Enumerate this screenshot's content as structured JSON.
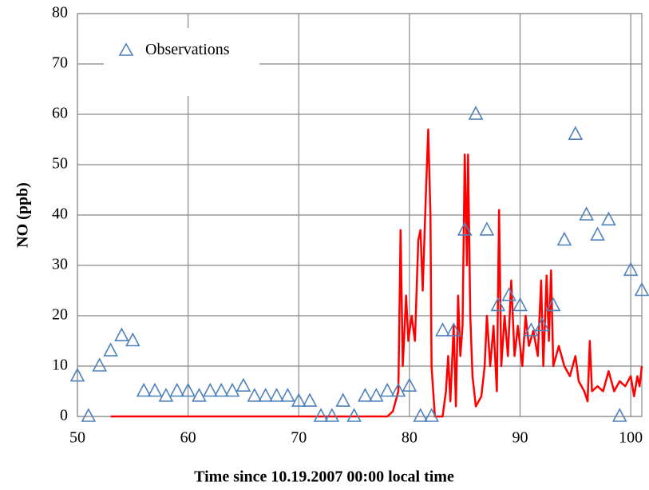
{
  "chart_data": {
    "type": "line",
    "xlabel": "Time since 10.19.2007 00:00  local time",
    "ylabel": "NO (ppb)",
    "xlim": [
      50,
      101
    ],
    "xticks": [
      50,
      60,
      70,
      80,
      90,
      100
    ],
    "ylim": [
      0,
      80
    ],
    "yticks": [
      0,
      10,
      20,
      30,
      40,
      50,
      60,
      70,
      80
    ],
    "grid": true,
    "legend": "upper left",
    "series": [
      {
        "name": "Observations",
        "color": "#4f81bd",
        "marker": "triangle",
        "x": [
          50,
          51,
          52,
          53,
          54,
          55,
          56,
          57,
          58,
          59,
          60,
          61,
          62,
          63,
          64,
          65,
          66,
          67,
          68,
          69,
          70,
          71,
          72,
          73,
          74,
          75,
          76,
          77,
          78,
          79,
          80,
          81,
          82,
          83,
          84,
          85,
          86,
          87,
          88,
          89,
          90,
          91,
          92,
          93,
          94,
          95,
          96,
          97,
          98,
          99,
          100,
          101
        ],
        "values": [
          8,
          0,
          10,
          13,
          16,
          15,
          5,
          5,
          4,
          5,
          5,
          4,
          5,
          5,
          5,
          6,
          4,
          4,
          4,
          4,
          3,
          3,
          0,
          0,
          3,
          0,
          4,
          4,
          5,
          5,
          6,
          0,
          0,
          17,
          17,
          37,
          60,
          37,
          22,
          24,
          22,
          17,
          18,
          22,
          35,
          56,
          40,
          36,
          39,
          0,
          29,
          25
        ]
      },
      {
        "color": "#ff0000",
        "x": [
          53,
          78,
          78.5,
          79,
          79.2,
          79.4,
          79.7,
          79.9,
          80.2,
          80.5,
          80.8,
          81,
          81.2,
          81.5,
          81.7,
          81.9,
          82,
          82.3,
          83,
          83.3,
          83.5,
          83.7,
          84,
          84.2,
          84.4,
          84.6,
          84.8,
          85,
          85.2,
          85.3,
          85.5,
          85.7,
          86,
          86.5,
          86.8,
          87,
          87.3,
          87.6,
          87.9,
          88.1,
          88.3,
          88.6,
          88.9,
          89.2,
          89.5,
          89.8,
          90.2,
          90.5,
          90.8,
          91.2,
          91.6,
          91.9,
          92.1,
          92.4,
          92.6,
          92.8,
          93,
          93.5,
          94,
          94.5,
          95,
          95.3,
          95.8,
          96.1,
          96.3,
          96.5,
          97,
          97.5,
          98,
          98.5,
          99,
          99.5,
          100,
          100.3,
          100.6,
          100.8,
          101
        ],
        "values": [
          0,
          0,
          1,
          5,
          37,
          10,
          24,
          15,
          20,
          15,
          35,
          37,
          25,
          45,
          57,
          40,
          10,
          0,
          0,
          5,
          12,
          3,
          18,
          2,
          24,
          12,
          18,
          52,
          30,
          52,
          20,
          8,
          2,
          4,
          10,
          20,
          10,
          18,
          5,
          41,
          10,
          20,
          12,
          27,
          12,
          18,
          10,
          20,
          14,
          17,
          12,
          27,
          10,
          28,
          15,
          29,
          10,
          14,
          10,
          8,
          12,
          7,
          5,
          3,
          15,
          5,
          6,
          5,
          9,
          5,
          7,
          6,
          8,
          4,
          8,
          6,
          10
        ]
      }
    ]
  }
}
